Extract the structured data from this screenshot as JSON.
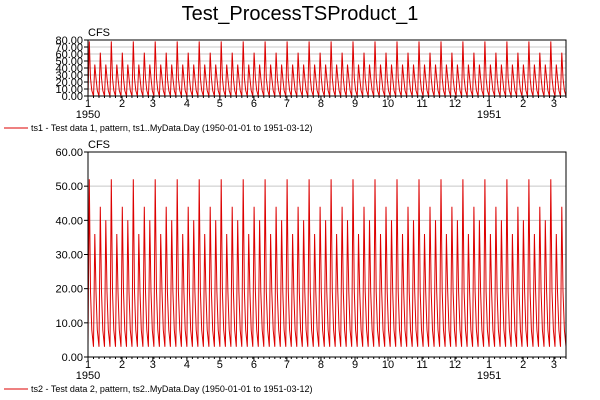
{
  "title": "Test_ProcessTSProduct_1",
  "colors": {
    "series": "#dd0000",
    "grid": "#c8c8c8",
    "frame": "#000000"
  },
  "chart_data": [
    {
      "type": "line",
      "unit": "CFS",
      "ylim": [
        0,
        80
      ],
      "yticks": [
        0,
        10,
        20,
        30,
        40,
        50,
        60,
        70,
        80
      ],
      "ytick_labels": [
        "0.00",
        "10.00",
        "20.00",
        "30.00",
        "40.00",
        "50.00",
        "60.00",
        "70.00",
        "80.00"
      ],
      "xlim": [
        "1950-01-01",
        "1951-03-12"
      ],
      "xticks": [
        "1",
        "2",
        "3",
        "4",
        "5",
        "6",
        "7",
        "8",
        "9",
        "10",
        "11",
        "12",
        "1",
        "2",
        "3"
      ],
      "year_labels": [
        "1950",
        "1951"
      ],
      "grid": true,
      "series": [
        {
          "name": "ts1 - Test data 1, pattern, ts1..MyData.Day (1950-01-01 to 1951-03-12)",
          "pattern": "repeating 5-day spikes",
          "min": 0,
          "max": 78,
          "peak_levels": [
            78,
            45,
            62,
            45
          ]
        }
      ]
    },
    {
      "type": "line",
      "unit": "CFS",
      "ylim": [
        0,
        60
      ],
      "yticks": [
        0,
        10,
        20,
        30,
        40,
        50,
        60
      ],
      "ytick_labels": [
        "0.00",
        "10.00",
        "20.00",
        "30.00",
        "40.00",
        "50.00",
        "60.00"
      ],
      "xlim": [
        "1950-01-01",
        "1951-03-12"
      ],
      "xticks": [
        "1",
        "2",
        "3",
        "4",
        "5",
        "6",
        "7",
        "8",
        "9",
        "10",
        "11",
        "12",
        "1",
        "2",
        "3"
      ],
      "year_labels": [
        "1950",
        "1951"
      ],
      "grid": true,
      "series": [
        {
          "name": "ts2 - Test data 2, pattern, ts2..MyData.Day (1950-01-01 to 1951-03-12)",
          "pattern": "repeating 5-day spikes",
          "min": 3,
          "max": 52,
          "peak_levels": [
            52,
            36,
            44,
            40
          ]
        }
      ]
    }
  ]
}
